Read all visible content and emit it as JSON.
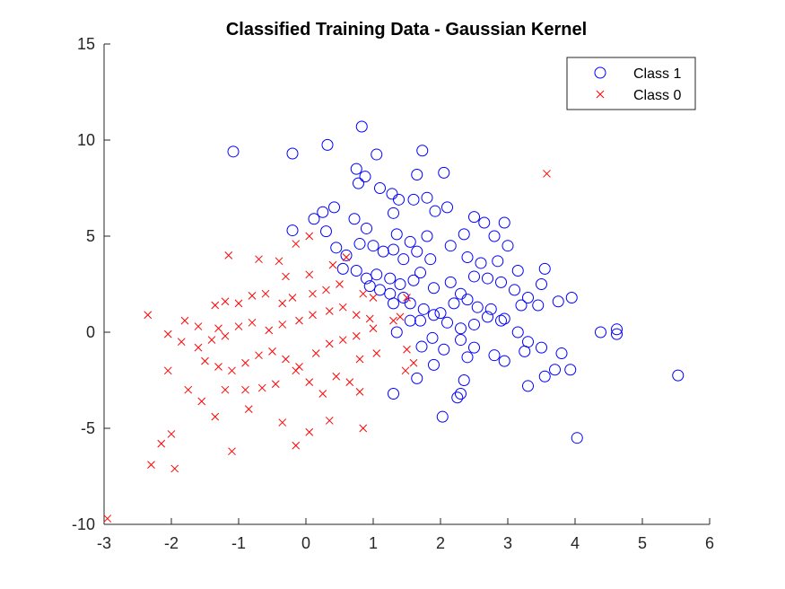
{
  "chart_data": {
    "type": "scatter",
    "title": "Classified Training Data - Gaussian Kernel",
    "xlabel": "",
    "ylabel": "",
    "xlim": [
      -3,
      6
    ],
    "ylim": [
      -10,
      15
    ],
    "xticks": [
      -3,
      -2,
      -1,
      0,
      1,
      2,
      3,
      4,
      5,
      6
    ],
    "yticks": [
      -10,
      -5,
      0,
      5,
      10,
      15
    ],
    "grid": false,
    "legend_position": "top-right",
    "series": [
      {
        "name": "Class 1",
        "marker": "circle",
        "color": "#0000ff",
        "points": [
          [
            -1.08,
            9.4
          ],
          [
            -0.2,
            9.3
          ],
          [
            0.32,
            9.75
          ],
          [
            0.83,
            10.7
          ],
          [
            1.73,
            9.45
          ],
          [
            1.05,
            9.25
          ],
          [
            2.05,
            8.3
          ],
          [
            1.65,
            8.2
          ],
          [
            0.75,
            8.5
          ],
          [
            0.88,
            8.1
          ],
          [
            0.78,
            7.75
          ],
          [
            1.1,
            7.5
          ],
          [
            1.28,
            7.2
          ],
          [
            1.38,
            6.9
          ],
          [
            1.8,
            7.0
          ],
          [
            1.6,
            6.9
          ],
          [
            0.42,
            6.5
          ],
          [
            0.25,
            6.25
          ],
          [
            0.12,
            5.9
          ],
          [
            0.72,
            5.9
          ],
          [
            1.3,
            6.2
          ],
          [
            1.92,
            6.3
          ],
          [
            2.1,
            6.5
          ],
          [
            2.5,
            6.0
          ],
          [
            2.65,
            5.7
          ],
          [
            2.95,
            5.7
          ],
          [
            -0.2,
            5.3
          ],
          [
            0.3,
            5.25
          ],
          [
            0.9,
            5.4
          ],
          [
            1.35,
            5.1
          ],
          [
            1.55,
            4.7
          ],
          [
            1.8,
            5.0
          ],
          [
            2.35,
            5.1
          ],
          [
            2.8,
            5.0
          ],
          [
            3.0,
            4.5
          ],
          [
            0.45,
            4.4
          ],
          [
            0.6,
            4.0
          ],
          [
            0.8,
            4.6
          ],
          [
            1.0,
            4.5
          ],
          [
            1.15,
            4.2
          ],
          [
            1.3,
            4.3
          ],
          [
            1.45,
            3.8
          ],
          [
            1.65,
            4.2
          ],
          [
            1.85,
            3.8
          ],
          [
            2.15,
            4.5
          ],
          [
            2.4,
            3.9
          ],
          [
            2.6,
            3.6
          ],
          [
            2.85,
            3.7
          ],
          [
            3.15,
            3.2
          ],
          [
            3.55,
            3.3
          ],
          [
            0.55,
            3.3
          ],
          [
            0.75,
            3.2
          ],
          [
            0.9,
            2.8
          ],
          [
            1.05,
            3.0
          ],
          [
            1.25,
            2.8
          ],
          [
            1.4,
            2.5
          ],
          [
            1.6,
            2.7
          ],
          [
            1.7,
            3.1
          ],
          [
            1.9,
            2.3
          ],
          [
            2.15,
            2.6
          ],
          [
            2.3,
            2.0
          ],
          [
            2.5,
            2.9
          ],
          [
            2.7,
            2.8
          ],
          [
            2.9,
            2.6
          ],
          [
            3.1,
            2.2
          ],
          [
            3.5,
            2.5
          ],
          [
            0.95,
            2.4
          ],
          [
            1.1,
            2.2
          ],
          [
            1.25,
            2.0
          ],
          [
            1.45,
            1.8
          ],
          [
            1.55,
            1.5
          ],
          [
            1.75,
            1.2
          ],
          [
            2.0,
            1.0
          ],
          [
            2.2,
            1.5
          ],
          [
            2.4,
            1.7
          ],
          [
            2.55,
            1.3
          ],
          [
            2.75,
            1.2
          ],
          [
            2.95,
            0.7
          ],
          [
            3.2,
            1.4
          ],
          [
            3.3,
            1.8
          ],
          [
            3.45,
            1.4
          ],
          [
            3.75,
            1.6
          ],
          [
            3.95,
            1.8
          ],
          [
            1.3,
            1.5
          ],
          [
            1.35,
            0.0
          ],
          [
            1.55,
            0.6
          ],
          [
            1.7,
            0.6
          ],
          [
            1.9,
            0.9
          ],
          [
            2.1,
            0.5
          ],
          [
            2.3,
            0.2
          ],
          [
            2.5,
            0.4
          ],
          [
            2.7,
            0.8
          ],
          [
            2.9,
            0.6
          ],
          [
            3.15,
            0.0
          ],
          [
            3.3,
            -0.5
          ],
          [
            1.72,
            -0.75
          ],
          [
            1.88,
            -0.3
          ],
          [
            2.05,
            -0.9
          ],
          [
            2.3,
            -0.4
          ],
          [
            2.5,
            -0.8
          ],
          [
            2.8,
            -1.2
          ],
          [
            2.95,
            -1.5
          ],
          [
            3.25,
            -1.0
          ],
          [
            3.5,
            -0.8
          ],
          [
            3.8,
            -1.1
          ],
          [
            4.38,
            0.0
          ],
          [
            4.62,
            0.15
          ],
          [
            4.62,
            -0.1
          ],
          [
            1.65,
            -2.4
          ],
          [
            1.9,
            -1.7
          ],
          [
            2.4,
            -1.3
          ],
          [
            3.55,
            -2.3
          ],
          [
            3.7,
            -1.95
          ],
          [
            3.93,
            -1.95
          ],
          [
            3.3,
            -2.8
          ],
          [
            2.35,
            -2.5
          ],
          [
            2.3,
            -3.2
          ],
          [
            2.25,
            -3.4
          ],
          [
            1.3,
            -3.2
          ],
          [
            2.03,
            -4.4
          ],
          [
            4.03,
            -5.5
          ],
          [
            5.53,
            -2.25
          ]
        ]
      },
      {
        "name": "Class 0",
        "marker": "x",
        "color": "#ff0000",
        "points": [
          [
            -2.95,
            -9.7
          ],
          [
            3.58,
            8.25
          ],
          [
            -2.35,
            0.9
          ],
          [
            -1.8,
            0.6
          ],
          [
            -1.6,
            0.3
          ],
          [
            -1.3,
            0.2
          ],
          [
            -1.15,
            4.0
          ],
          [
            -0.7,
            3.8
          ],
          [
            -0.4,
            3.7
          ],
          [
            -0.15,
            4.6
          ],
          [
            0.05,
            5.0
          ],
          [
            -0.3,
            2.9
          ],
          [
            0.05,
            3.0
          ],
          [
            0.4,
            3.5
          ],
          [
            0.6,
            3.9
          ],
          [
            -1.35,
            1.4
          ],
          [
            -1.2,
            1.6
          ],
          [
            -1.0,
            1.5
          ],
          [
            -0.8,
            1.9
          ],
          [
            -0.6,
            2.0
          ],
          [
            -0.35,
            1.5
          ],
          [
            -0.2,
            1.8
          ],
          [
            0.1,
            2.0
          ],
          [
            0.3,
            2.2
          ],
          [
            0.5,
            2.5
          ],
          [
            0.85,
            2.0
          ],
          [
            1.0,
            1.8
          ],
          [
            -2.05,
            -0.1
          ],
          [
            -1.85,
            -0.5
          ],
          [
            -1.6,
            -0.8
          ],
          [
            -1.4,
            -0.4
          ],
          [
            -1.2,
            -0.2
          ],
          [
            -1.0,
            0.3
          ],
          [
            -0.8,
            0.5
          ],
          [
            -0.55,
            0.1
          ],
          [
            -0.35,
            0.4
          ],
          [
            -0.1,
            0.6
          ],
          [
            0.1,
            0.9
          ],
          [
            0.35,
            1.1
          ],
          [
            0.55,
            1.3
          ],
          [
            0.75,
            0.9
          ],
          [
            0.95,
            0.7
          ],
          [
            1.4,
            0.8
          ],
          [
            -1.5,
            -1.5
          ],
          [
            -1.3,
            -1.8
          ],
          [
            -1.1,
            -2.0
          ],
          [
            -0.9,
            -1.6
          ],
          [
            -0.7,
            -1.2
          ],
          [
            -0.5,
            -1.0
          ],
          [
            -0.3,
            -1.4
          ],
          [
            -0.1,
            -1.8
          ],
          [
            0.15,
            -1.1
          ],
          [
            0.35,
            -0.6
          ],
          [
            0.55,
            -0.4
          ],
          [
            0.75,
            -0.2
          ],
          [
            1.0,
            0.2
          ],
          [
            1.3,
            0.6
          ],
          [
            1.5,
            1.8
          ],
          [
            -2.05,
            -2.0
          ],
          [
            -1.75,
            -3.0
          ],
          [
            -1.55,
            -3.6
          ],
          [
            -1.35,
            -4.4
          ],
          [
            -1.2,
            -3.0
          ],
          [
            -0.9,
            -3.0
          ],
          [
            -0.65,
            -2.9
          ],
          [
            -0.45,
            -2.7
          ],
          [
            -0.15,
            -2.0
          ],
          [
            0.05,
            -2.6
          ],
          [
            0.25,
            -3.2
          ],
          [
            0.45,
            -2.3
          ],
          [
            0.65,
            -2.6
          ],
          [
            0.8,
            -1.4
          ],
          [
            1.05,
            -1.1
          ],
          [
            1.5,
            -0.9
          ],
          [
            1.6,
            -1.6
          ],
          [
            1.48,
            -2.0
          ],
          [
            -2.0,
            -5.3
          ],
          [
            -2.15,
            -5.8
          ],
          [
            -2.3,
            -6.9
          ],
          [
            -1.95,
            -7.1
          ],
          [
            -1.1,
            -6.2
          ],
          [
            -0.15,
            -5.9
          ],
          [
            0.05,
            -5.2
          ],
          [
            -0.35,
            -4.7
          ],
          [
            0.35,
            -4.6
          ],
          [
            0.85,
            -5.0
          ],
          [
            0.8,
            -3.1
          ],
          [
            -0.85,
            -4.0
          ]
        ]
      }
    ]
  }
}
